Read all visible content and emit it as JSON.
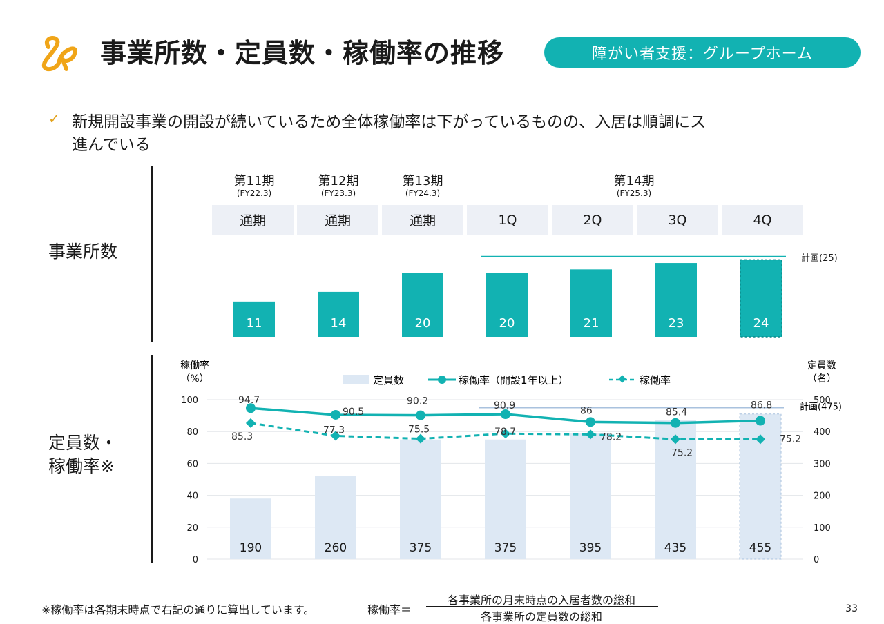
{
  "header": {
    "title": "事業所数・定員数・稼働率の推移",
    "badge": "障がい者支援：グループホーム",
    "logo_icon": "lp-logo-icon"
  },
  "bullet": {
    "icon": "check-icon",
    "lines": [
      "新規開設事業の開設が続いているため全体稼働率は下がっているものの、入居は順調にス",
      "進んでいる"
    ]
  },
  "sections": {
    "top_label": "事業所数",
    "bottom_label_line1": "定員数・",
    "bottom_label_line2": "稼働率※"
  },
  "periods": [
    {
      "name": "第11期",
      "sub": "(FY22.3)"
    },
    {
      "name": "第12期",
      "sub": "(FY23.3)"
    },
    {
      "name": "第13期",
      "sub": "(FY24.3)"
    },
    {
      "name": "第14期",
      "sub": "(FY25.3)"
    }
  ],
  "column_headers": [
    "通期",
    "通期",
    "通期",
    "1Q",
    "2Q",
    "3Q",
    "4Q"
  ],
  "chart_data": [
    {
      "type": "bar",
      "categories": [
        "通期",
        "通期",
        "通期",
        "1Q",
        "2Q",
        "3Q",
        "4Q"
      ],
      "values": [
        11,
        14,
        20,
        20,
        21,
        23,
        24
      ],
      "plan_label": "計画(25)",
      "plan_value": 25,
      "last_bar_dashed": true,
      "color": "#12b2b2"
    },
    {
      "type": "bar",
      "categories": [
        "通期",
        "通期",
        "通期",
        "1Q",
        "2Q",
        "3Q",
        "4Q"
      ],
      "y_left_title_line1": "稼働率",
      "y_left_title_line2": "（%）",
      "y_right_title_line1": "定員数",
      "y_right_title_line2": "（名）",
      "y_left_ticks": [
        "100",
        "80",
        "60",
        "40",
        "20",
        "0"
      ],
      "y_right_ticks": [
        "500",
        "400",
        "300",
        "200",
        "100",
        "0"
      ],
      "ylim_left": [
        0,
        100
      ],
      "ylim_right": [
        0,
        500
      ],
      "legend": [
        "定員数",
        "稼働率（開設1年以上）",
        "稼働率"
      ],
      "capacity": [
        190,
        260,
        375,
        375,
        395,
        435,
        455
      ],
      "rate_established": [
        94.7,
        90.5,
        90.2,
        90.9,
        86,
        85.4,
        86.8
      ],
      "rate_established_labels": [
        "94.7",
        "90.5",
        "90.2",
        "90.9",
        "86",
        "85.4",
        "86.8"
      ],
      "rate_all": [
        85.3,
        77.3,
        75.5,
        78.7,
        78.2,
        75.2,
        75.2
      ],
      "rate_all_labels": [
        "85.3",
        "77.3",
        "75.5",
        "78.7",
        "78.2",
        "75.2",
        "75.2"
      ],
      "plan_label": "計画(475)",
      "plan_value": 475,
      "colors": {
        "capacity": "#dde8f4",
        "rate": "#12b2b2",
        "plan": "#a9c2de"
      }
    }
  ],
  "footer": {
    "note": "※稼働率は各期末時点で右記の通りに算出しています。",
    "formula_label": "稼働率＝",
    "numerator": "各事業所の月末時点の入居者数の総和",
    "denominator": "各事業所の定員数の総和",
    "page": "33"
  }
}
